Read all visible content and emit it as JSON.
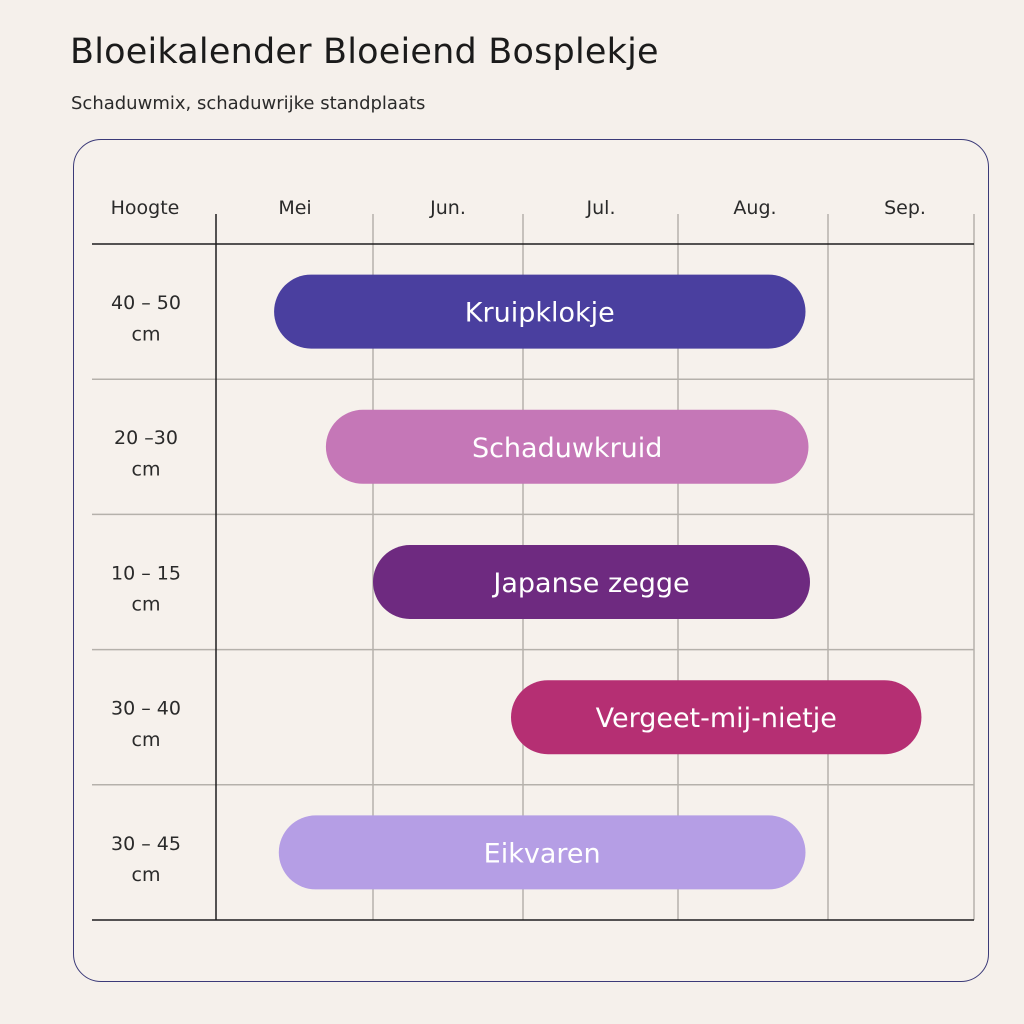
{
  "header": {
    "title": "Bloeikalender Bloeiend Bosplekje",
    "subtitle": "Schaduwmix, schaduwrijke standplaats"
  },
  "chart_data": {
    "type": "gantt",
    "title": "Bloeikalender Bloeiend Bosplekje",
    "subtitle": "Schaduwmix, schaduwrijke standplaats",
    "row_header": "Hoogte",
    "months": [
      "Mei",
      "Jun.",
      "Jul.",
      "Aug.",
      "Sep."
    ],
    "x_range": [
      0,
      5
    ],
    "grid": true,
    "rows": [
      {
        "height_lines": [
          "40 – 50",
          "cm"
        ],
        "name": "Kruipklokje",
        "start": 0.37,
        "end": 3.85,
        "color": "#4a3f9f"
      },
      {
        "height_lines": [
          "20 –30",
          "cm"
        ],
        "name": "Schaduwkruid",
        "start": 0.7,
        "end": 3.87,
        "color": "#c577b7"
      },
      {
        "height_lines": [
          "10 – 15",
          "cm"
        ],
        "name": "Japanse zegge",
        "start": 1.0,
        "end": 3.88,
        "color": "#6e2a80"
      },
      {
        "height_lines": [
          "30 – 40",
          "cm"
        ],
        "name": "Vergeet-mij-nietje",
        "start": 1.92,
        "end": 4.64,
        "color": "#b52f73"
      },
      {
        "height_lines": [
          "30 – 45",
          "cm"
        ],
        "name": "Eikvaren",
        "start": 0.4,
        "end": 3.85,
        "color": "#b59ee5"
      }
    ]
  }
}
